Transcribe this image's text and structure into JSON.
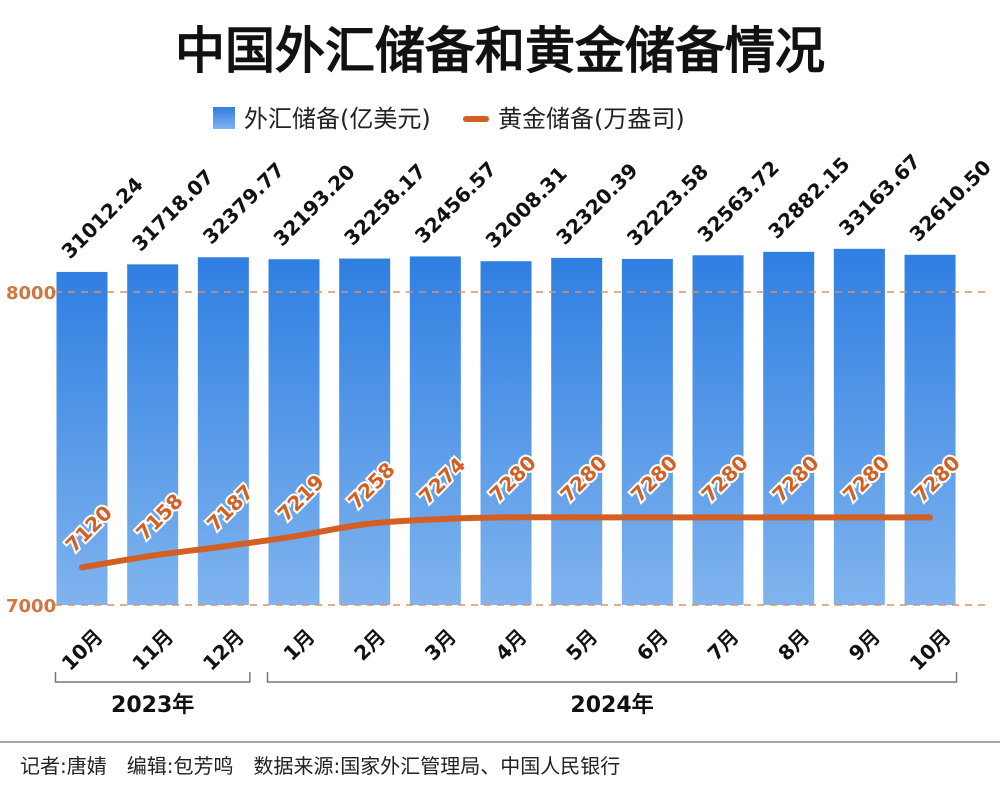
{
  "chart_data": {
    "type": "bar+line",
    "title": "中国外汇储备和黄金储备情况",
    "categories": [
      "10月",
      "11月",
      "12月",
      "1月",
      "2月",
      "3月",
      "4月",
      "5月",
      "6月",
      "7月",
      "8月",
      "9月",
      "10月"
    ],
    "groups": [
      {
        "label": "2023年",
        "from": 0,
        "to": 2
      },
      {
        "label": "2024年",
        "from": 3,
        "to": 12
      }
    ],
    "series": [
      {
        "name": "外汇储备(亿美元)",
        "type": "bar",
        "color": "#3a86e6",
        "values": [
          31012.24,
          31718.07,
          32379.77,
          32193.2,
          32258.17,
          32456.57,
          32008.31,
          32320.39,
          32223.58,
          32563.72,
          32882.15,
          33163.67,
          32610.5
        ],
        "labels": [
          "31012.24",
          "31718.07",
          "32379.77",
          "32193.20",
          "32258.17",
          "32456.57",
          "32008.31",
          "32320.39",
          "32223.58",
          "32563.72",
          "32882.15",
          "33163.67",
          "32610.50"
        ]
      },
      {
        "name": "黄金储备(万盎司)",
        "type": "line",
        "color": "#d45f23",
        "values": [
          7120,
          7158,
          7187,
          7219,
          7258,
          7274,
          7280,
          7280,
          7280,
          7280,
          7280,
          7280,
          7280
        ],
        "labels": [
          "7120",
          "7158",
          "7187",
          "7219",
          "7258",
          "7274",
          "7280",
          "7280",
          "7280",
          "7280",
          "7280",
          "7280",
          "7280"
        ]
      }
    ],
    "y_line": {
      "range": [
        7000,
        8000
      ],
      "ticks": [
        "7000",
        "8000"
      ],
      "grid": "dashed"
    },
    "legend": "top-center"
  },
  "footer": "记者:唐婧　编辑:包芳鸣　数据来源:国家外汇管理局、中国人民银行"
}
